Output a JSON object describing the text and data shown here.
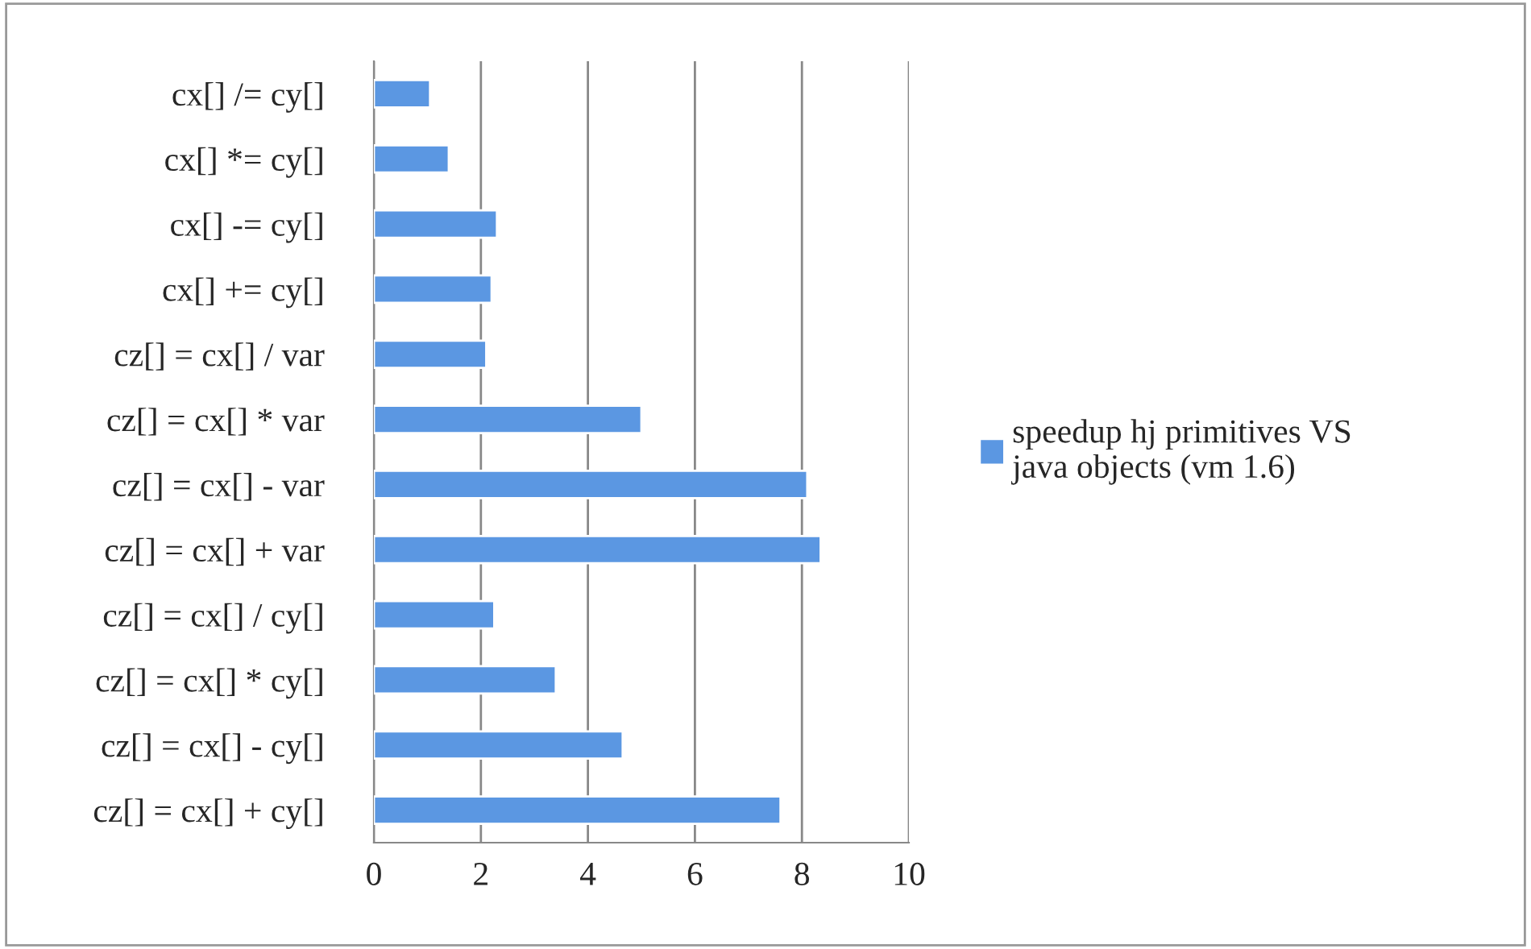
{
  "chart_data": {
    "type": "bar",
    "orientation": "horizontal",
    "categories": [
      "cx[] /= cy[]",
      "cx[] *= cy[]",
      "cx[] -= cy[]",
      "cx[] += cy[]",
      "cz[] = cx[] / var",
      "cz[] = cx[] * var",
      "cz[] = cx[] - var",
      "cz[] = cx[] + var",
      "cz[] = cx[] / cy[]",
      "cz[] = cx[] * cy[]",
      "cz[] = cx[] - cy[]",
      "cz[] = cx[] + cy[]"
    ],
    "series": [
      {
        "name": "speedup hj primitives VS\njava objects (vm 1.6)",
        "color": "#5b97e2",
        "values": [
          1.05,
          1.4,
          2.3,
          2.2,
          2.1,
          5.0,
          8.1,
          8.35,
          2.25,
          3.4,
          4.65,
          7.6
        ]
      }
    ],
    "xlim": [
      0,
      10
    ],
    "xticks": [
      0,
      2,
      4,
      6,
      8,
      10
    ],
    "grid": "x",
    "legend": "right"
  }
}
